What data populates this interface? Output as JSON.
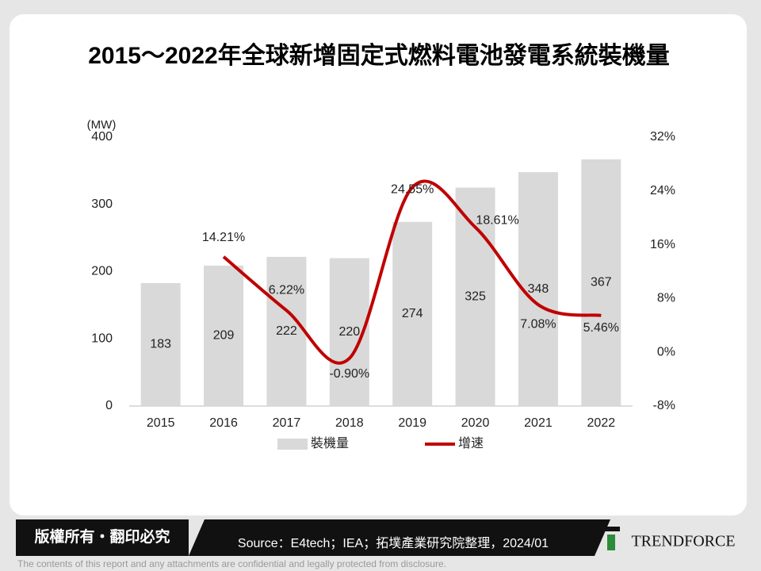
{
  "chart_data": {
    "type": "bar-line",
    "title": "2015～2022年全球新增固定式燃料電池發電系統裝機量",
    "y_label": "(MW)",
    "categories": [
      "2015",
      "2016",
      "2017",
      "2018",
      "2019",
      "2020",
      "2021",
      "2022"
    ],
    "series": [
      {
        "name": "裝機量",
        "type": "bar",
        "color": "#d9d9d9",
        "values": [
          183,
          209,
          222,
          220,
          274,
          325,
          348,
          367
        ]
      },
      {
        "name": "增速",
        "type": "line",
        "axis": "y2",
        "color": "#c00000",
        "values": [
          null,
          14.21,
          6.22,
          -0.9,
          24.55,
          18.61,
          7.08,
          5.46
        ],
        "value_labels": [
          null,
          "14.21%",
          "6.22%",
          "-0.90%",
          "24.55%",
          "18.61%",
          "7.08%",
          "5.46%"
        ]
      }
    ],
    "ylim": [
      0,
      400
    ],
    "yticks": [
      0,
      100,
      200,
      300,
      400
    ],
    "y2lim": [
      -8,
      32
    ],
    "y2ticks": [
      {
        "value": -8,
        "label": "-8%"
      },
      {
        "value": 0,
        "label": "0%"
      },
      {
        "value": 8,
        "label": "8%"
      },
      {
        "value": 16,
        "label": "16%"
      },
      {
        "value": 24,
        "label": "24%"
      },
      {
        "value": 32,
        "label": "32%"
      }
    ],
    "grid": false,
    "legend": "bottom"
  },
  "footer": {
    "rights": "版權所有・翻印必究",
    "source": "Source：E4tech；IEA；拓墣產業研究院整理，2024/01",
    "brand": "TRENDFORCE",
    "disclaimer": "The contents of this report and any attachments are confidential and legally protected from disclosure."
  }
}
